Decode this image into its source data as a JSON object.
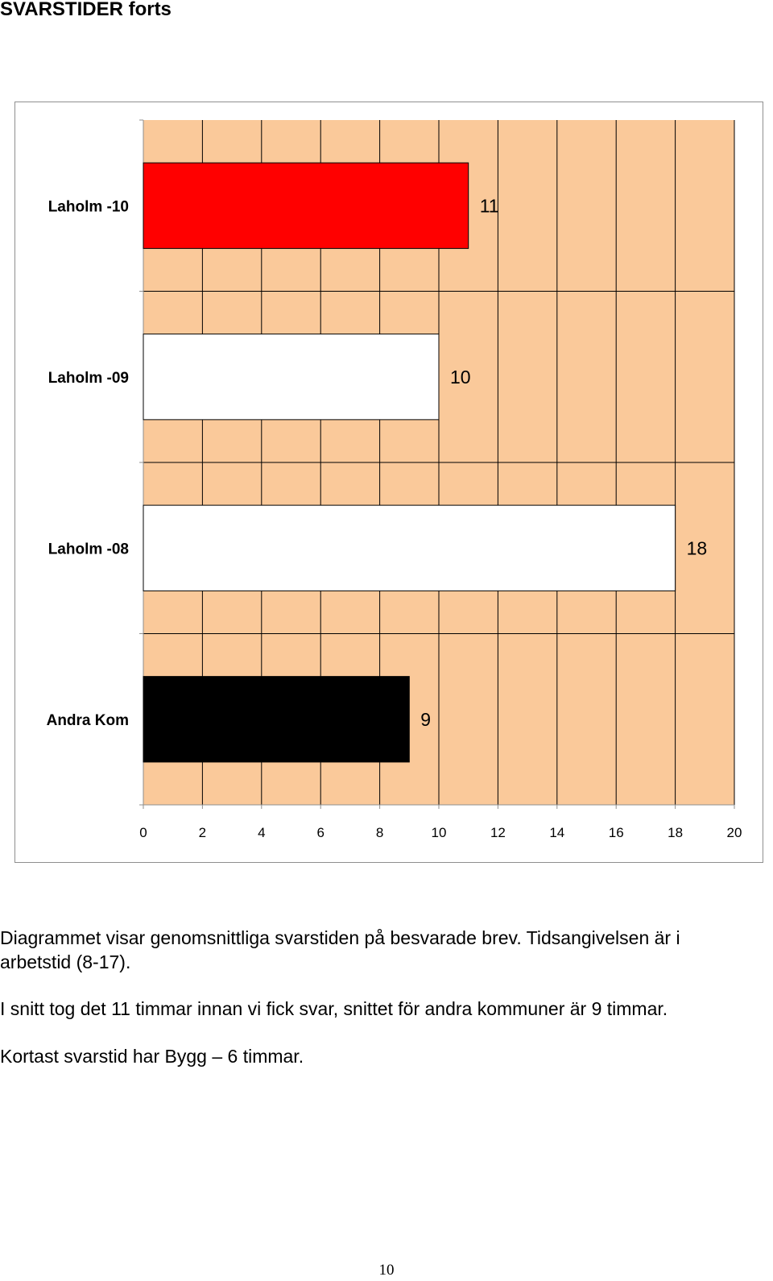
{
  "heading": "SVARSTIDER forts",
  "chart_data": {
    "type": "bar",
    "orientation": "horizontal",
    "categories": [
      "Laholm -10",
      "Laholm -09",
      "Laholm -08",
      "Andra Kom"
    ],
    "values": [
      11,
      10,
      18,
      9
    ],
    "bar_colors": [
      "#ff0000",
      "#ffffff",
      "#ffffff",
      "#000000"
    ],
    "plot_background": "#fac99a",
    "xlim": [
      0,
      20
    ],
    "xticks": [
      0,
      2,
      4,
      6,
      8,
      10,
      12,
      14,
      16,
      18,
      20
    ],
    "grid": true,
    "legend": "none",
    "title": "",
    "xlabel": "",
    "ylabel": ""
  },
  "paragraphs": {
    "p1_line1": "Diagrammet visar genomsnittliga svarstiden på besvarade brev. Tidsangivelsen är i",
    "p1_line2": "arbetstid (8-17).",
    "p2": "I snitt tog det 11 timmar innan vi fick svar, snittet för andra kommuner är 9 timmar.",
    "p3": "Kortast svarstid har Bygg – 6 timmar."
  },
  "page_number": "10"
}
